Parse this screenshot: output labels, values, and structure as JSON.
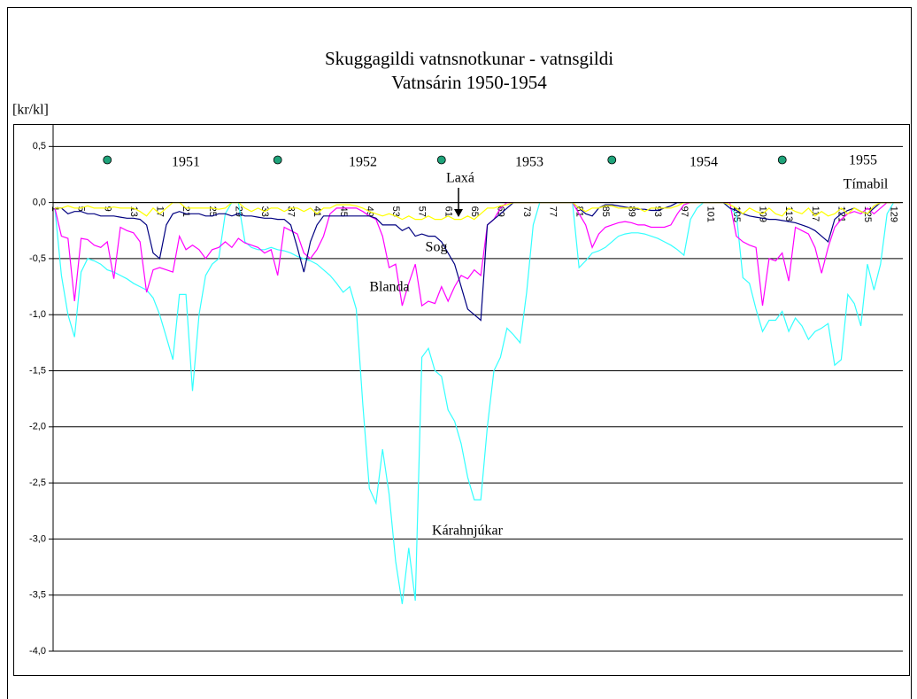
{
  "chart_data": {
    "type": "line",
    "title": "Skuggagildi vatnsnotkunar - vatnsgildi",
    "subtitle": "Vatnsárin 1950-1954",
    "y_label": "[kr/kl]",
    "categories": [
      1,
      null,
      null,
      null,
      5,
      null,
      null,
      null,
      9,
      null,
      null,
      null,
      13,
      null,
      null,
      null,
      17,
      null,
      null,
      null,
      21,
      null,
      null,
      null,
      25,
      null,
      null,
      null,
      29,
      null,
      null,
      null,
      33,
      null,
      null,
      null,
      37,
      null,
      null,
      null,
      41,
      null,
      null,
      null,
      45,
      null,
      null,
      null,
      49,
      null,
      null,
      null,
      53,
      null,
      null,
      null,
      57,
      null,
      null,
      null,
      61,
      null,
      null,
      null,
      65,
      null,
      null,
      null,
      69,
      null,
      null,
      null,
      73,
      null,
      null,
      null,
      77,
      null,
      null,
      null,
      81,
      null,
      null,
      null,
      85,
      null,
      null,
      null,
      89,
      null,
      null,
      null,
      93,
      null,
      null,
      null,
      97,
      null,
      null,
      null,
      101,
      null,
      null,
      null,
      105,
      null,
      null,
      null,
      109,
      null,
      null,
      null,
      113,
      null,
      null,
      null,
      117,
      null,
      null,
      null,
      121,
      null,
      null,
      null,
      125,
      null,
      null,
      null,
      129,
      null
    ],
    "series": [
      {
        "name": "Kárahnjúkar",
        "color": "#33ffff",
        "values": [
          -0.05,
          -0.65,
          -1.0,
          -1.2,
          -0.62,
          -0.5,
          -0.52,
          -0.55,
          -0.6,
          -0.62,
          -0.65,
          -0.68,
          -0.72,
          -0.75,
          -0.78,
          -0.85,
          -1.0,
          -1.2,
          -1.4,
          -0.82,
          -0.82,
          -1.68,
          -1.0,
          -0.65,
          -0.55,
          -0.5,
          -0.1,
          0,
          0,
          -0.35,
          -0.4,
          -0.42,
          -0.42,
          -0.4,
          -0.42,
          -0.43,
          -0.45,
          -0.48,
          -0.5,
          -0.52,
          -0.55,
          -0.6,
          -0.65,
          -0.72,
          -0.8,
          -0.75,
          -0.95,
          -1.8,
          -2.55,
          -2.68,
          -2.2,
          -2.6,
          -3.2,
          -3.58,
          -3.08,
          -3.55,
          -1.38,
          -1.3,
          -1.5,
          -1.55,
          -1.85,
          -1.95,
          -2.15,
          -2.45,
          -2.65,
          -2.65,
          -2.0,
          -1.5,
          -1.38,
          -1.12,
          -1.18,
          -1.25,
          -0.8,
          -0.2,
          0,
          0,
          0,
          0,
          0,
          0,
          -0.58,
          -0.52,
          -0.45,
          -0.43,
          -0.4,
          -0.35,
          -0.3,
          -0.28,
          -0.27,
          -0.27,
          -0.28,
          -0.3,
          -0.32,
          -0.35,
          -0.38,
          -0.42,
          -0.47,
          -0.15,
          -0.05,
          0,
          0,
          0,
          0,
          -0.05,
          -0.1,
          -0.67,
          -0.72,
          -0.95,
          -1.15,
          -1.05,
          -1.05,
          -0.97,
          -1.15,
          -1.03,
          -1.1,
          -1.22,
          -1.15,
          -1.12,
          -1.08,
          -1.45,
          -1.4,
          -0.82,
          -0.9,
          -1.1,
          -0.55,
          -0.78,
          -0.55,
          -0.1,
          0,
          0
        ]
      },
      {
        "name": "Blanda",
        "color": "#ff00ff",
        "values": [
          -0.05,
          -0.3,
          -0.32,
          -0.88,
          -0.32,
          -0.33,
          -0.38,
          -0.4,
          -0.35,
          -0.68,
          -0.22,
          -0.25,
          -0.27,
          -0.35,
          -0.8,
          -0.6,
          -0.58,
          -0.6,
          -0.62,
          -0.3,
          -0.42,
          -0.38,
          -0.42,
          -0.5,
          -0.42,
          -0.4,
          -0.35,
          -0.4,
          -0.32,
          -0.36,
          -0.38,
          -0.4,
          -0.45,
          -0.42,
          -0.65,
          -0.22,
          -0.25,
          -0.28,
          -0.45,
          -0.5,
          -0.42,
          -0.3,
          -0.1,
          -0.05,
          -0.05,
          -0.05,
          -0.05,
          -0.08,
          -0.12,
          -0.15,
          -0.3,
          -0.58,
          -0.55,
          -0.92,
          -0.72,
          -0.55,
          -0.92,
          -0.88,
          -0.9,
          -0.75,
          -0.88,
          -0.75,
          -0.65,
          -0.68,
          -0.6,
          -0.65,
          -0.2,
          -0.15,
          -0.05,
          0,
          0,
          0,
          0,
          0,
          0,
          0,
          0,
          0,
          0,
          0,
          -0.1,
          -0.2,
          -0.4,
          -0.28,
          -0.22,
          -0.2,
          -0.18,
          -0.17,
          -0.18,
          -0.2,
          -0.2,
          -0.22,
          -0.22,
          -0.22,
          -0.2,
          -0.1,
          -0.02,
          0,
          0,
          0,
          0,
          0,
          0,
          0,
          -0.3,
          -0.35,
          -0.38,
          -0.4,
          -0.92,
          -0.5,
          -0.52,
          -0.45,
          -0.7,
          -0.22,
          -0.25,
          -0.28,
          -0.4,
          -0.63,
          -0.4,
          -0.22,
          -0.15,
          -0.1,
          -0.08,
          -0.1,
          -0.05,
          -0.1,
          -0.05,
          0,
          0,
          0
        ]
      },
      {
        "name": "Sog",
        "color": "#000080",
        "values": [
          -0.05,
          -0.05,
          -0.1,
          -0.08,
          -0.08,
          -0.1,
          -0.1,
          -0.12,
          -0.12,
          -0.12,
          -0.13,
          -0.14,
          -0.14,
          -0.15,
          -0.2,
          -0.45,
          -0.5,
          -0.2,
          -0.1,
          -0.08,
          -0.1,
          -0.1,
          -0.1,
          -0.12,
          -0.12,
          -0.1,
          -0.1,
          -0.12,
          -0.1,
          -0.12,
          -0.12,
          -0.13,
          -0.14,
          -0.14,
          -0.15,
          -0.15,
          -0.2,
          -0.4,
          -0.62,
          -0.35,
          -0.2,
          -0.12,
          -0.12,
          -0.12,
          -0.12,
          -0.12,
          -0.12,
          -0.12,
          -0.12,
          -0.14,
          -0.2,
          -0.2,
          -0.2,
          -0.25,
          -0.22,
          -0.3,
          -0.28,
          -0.3,
          -0.3,
          -0.35,
          -0.45,
          -0.55,
          -0.75,
          -0.95,
          -1.0,
          -1.05,
          -0.2,
          -0.15,
          -0.1,
          -0.05,
          0,
          0,
          0,
          0,
          0,
          0,
          0,
          0,
          0,
          0,
          -0.05,
          -0.1,
          -0.12,
          -0.05,
          -0.02,
          -0.02,
          -0.03,
          -0.04,
          -0.05,
          -0.06,
          -0.06,
          -0.07,
          -0.07,
          -0.05,
          -0.03,
          0,
          0,
          0,
          0,
          0,
          0,
          0,
          0,
          -0.05,
          -0.07,
          -0.1,
          -0.12,
          -0.13,
          -0.14,
          -0.15,
          -0.15,
          -0.16,
          -0.17,
          -0.18,
          -0.2,
          -0.22,
          -0.25,
          -0.3,
          -0.35,
          -0.15,
          -0.1,
          -0.07,
          -0.05,
          -0.08,
          -0.1,
          -0.05,
          0,
          0,
          0,
          0
        ]
      },
      {
        "name": "Laxá",
        "color": "#ffff00",
        "values": [
          -0.05,
          -0.05,
          -0.03,
          -0.05,
          -0.05,
          -0.03,
          -0.05,
          -0.05,
          -0.05,
          -0.04,
          -0.05,
          -0.05,
          -0.05,
          -0.08,
          -0.12,
          -0.05,
          -0.1,
          -0.05,
          0,
          0,
          -0.05,
          -0.05,
          -0.05,
          -0.05,
          -0.05,
          -0.06,
          -0.05,
          0,
          0,
          -0.05,
          -0.08,
          -0.05,
          -0.08,
          -0.05,
          -0.05,
          -0.08,
          -0.05,
          -0.05,
          -0.08,
          -0.05,
          -0.1,
          -0.05,
          -0.05,
          -0.02,
          -0.02,
          -0.02,
          -0.03,
          -0.05,
          -0.08,
          -0.1,
          -0.12,
          -0.1,
          -0.12,
          -0.15,
          -0.12,
          -0.15,
          -0.15,
          -0.12,
          -0.15,
          -0.15,
          -0.12,
          -0.15,
          -0.15,
          -0.12,
          -0.15,
          -0.1,
          -0.05,
          -0.05,
          -0.03,
          -0.02,
          0,
          0,
          0,
          0,
          0,
          0,
          0,
          0,
          0,
          0,
          -0.05,
          -0.08,
          -0.05,
          -0.05,
          -0.03,
          -0.03,
          -0.05,
          -0.05,
          -0.05,
          -0.05,
          -0.08,
          -0.05,
          -0.05,
          -0.05,
          -0.05,
          -0.03,
          0,
          0,
          0,
          0,
          0,
          0,
          0,
          -0.02,
          -0.05,
          -0.1,
          -0.05,
          -0.08,
          -0.1,
          -0.05,
          -0.1,
          -0.12,
          -0.05,
          -0.08,
          -0.1,
          -0.05,
          -0.12,
          -0.08,
          -0.12,
          -0.1,
          -0.05,
          -0.1,
          -0.05,
          -0.08,
          -0.1,
          -0.03,
          0,
          0,
          0,
          0
        ]
      }
    ],
    "markers": {
      "color": "#1fa37a",
      "x": [
        9,
        35,
        60,
        86,
        112
      ],
      "values": [
        0.38,
        0.38,
        0.38,
        0.38,
        0.38
      ]
    },
    "annotations": [
      "1951",
      "1952",
      "1953",
      "1954",
      "1955",
      "Laxá",
      "Tímabil",
      "Sog",
      "Blanda",
      "Kárahnjúkar"
    ],
    "ylim": [
      -4,
      0.7
    ],
    "yticks": [
      {
        "value": 0.5,
        "label": "0,5"
      },
      {
        "value": 0,
        "label": "0,0"
      },
      {
        "value": -0.5,
        "label": "-0,5"
      },
      {
        "value": -1,
        "label": "-1,0"
      },
      {
        "value": -1.5,
        "label": "-1,5"
      },
      {
        "value": -2,
        "label": "-2,0"
      },
      {
        "value": -2.5,
        "label": "-2,5"
      },
      {
        "value": -3,
        "label": "-3,0"
      },
      {
        "value": -3.5,
        "label": "-3,5"
      },
      {
        "value": -4,
        "label": "-4,0"
      }
    ],
    "grid": true
  }
}
